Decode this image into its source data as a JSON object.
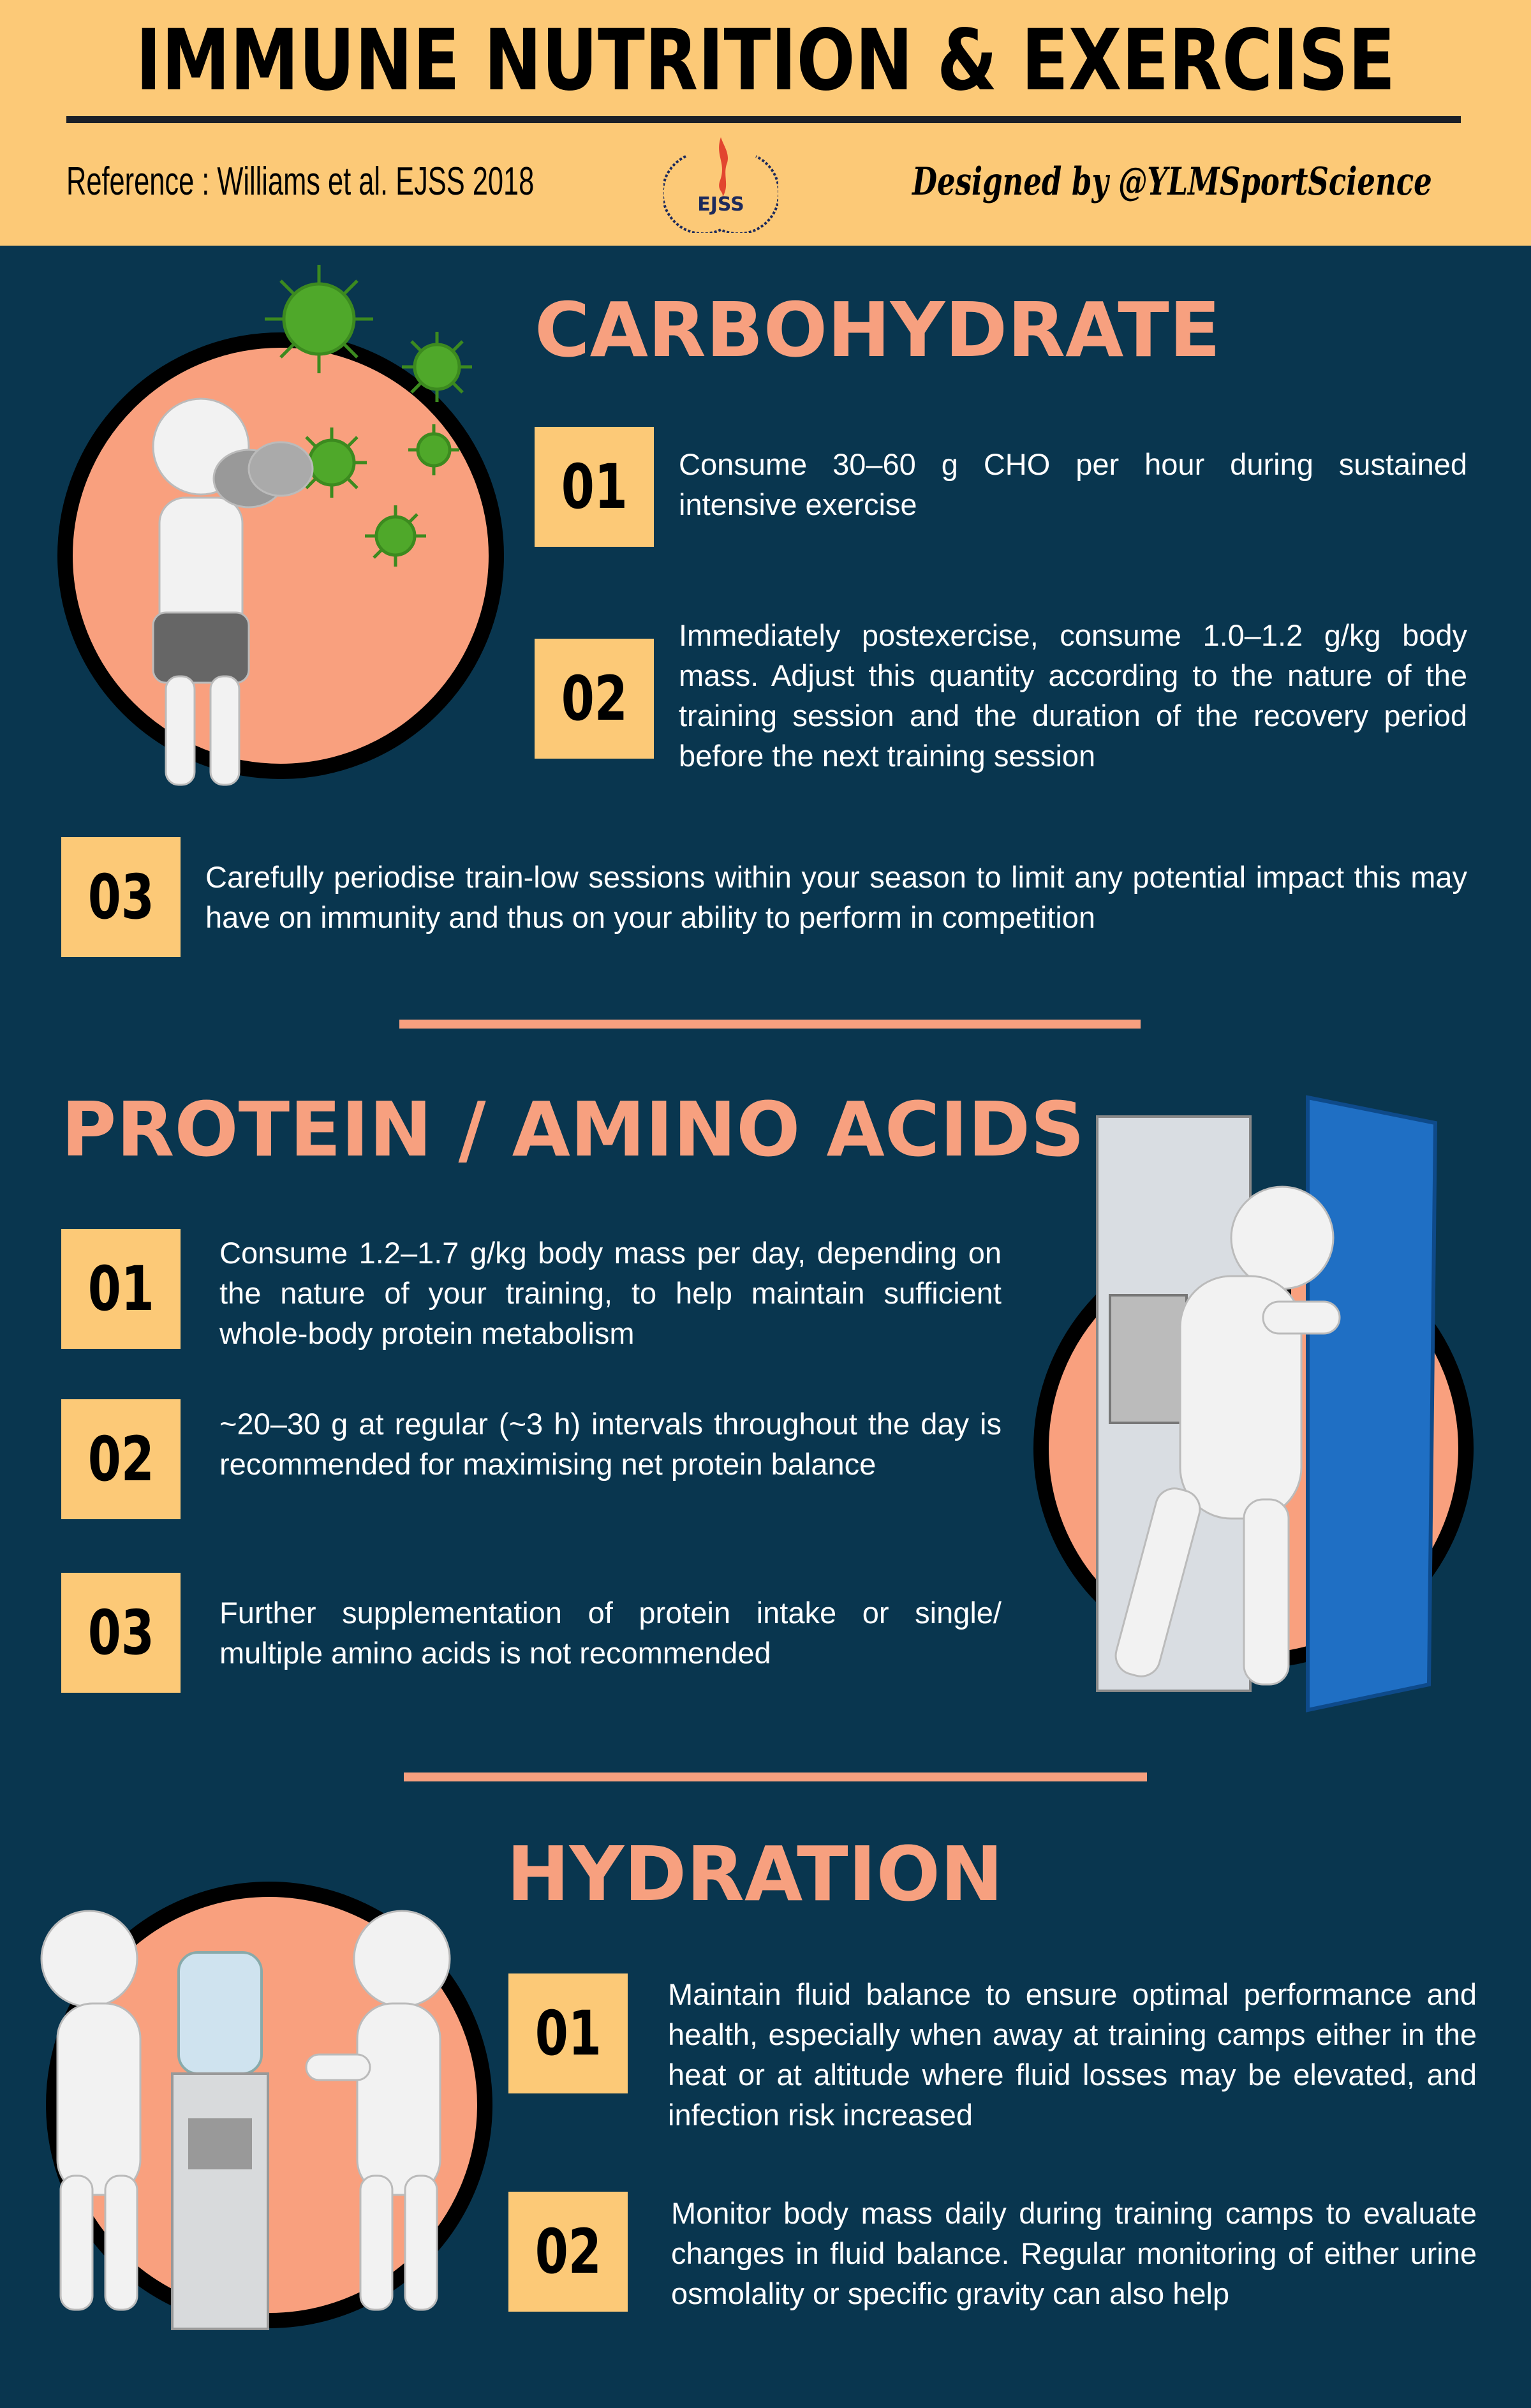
{
  "header": {
    "title": "IMMUNE NUTRITION & EXERCISE",
    "reference": "Reference  : Williams et al. EJSS 2018",
    "logo_text": "EJSS",
    "logo_ring_text": "EUROPEAN JOURNAL of SPORT SCIENCE",
    "designed_by": "Designed by @YLMSportScience"
  },
  "colors": {
    "header_bg": "#fcc977",
    "page_bg": "#09364f",
    "accent": "#f7a07f",
    "number_box": "#fcc977"
  },
  "sections": [
    {
      "heading": "CARBOHYDRATE",
      "items": [
        {
          "number": "01",
          "text": "Consume 30–60 g CHO per hour during sustained intensive exercise"
        },
        {
          "number": "02",
          "text": "Immediately postexercise, consume 1.0–1.2 g/kg body mass. Adjust this quantity according to the nature of the training session and the duration of the recovery period before the next training session"
        },
        {
          "number": "03",
          "text": "Carefully periodise train-low sessions within your season to limit any potential impact this may have on immunity and thus on your ability to perform in competition"
        }
      ]
    },
    {
      "heading": "PROTEIN / AMINO ACIDS",
      "items": [
        {
          "number": "01",
          "text": "Consume 1.2–1.7 g/kg body mass per day, depending on the nature of your training, to help maintain sufficient whole-body protein metabolism"
        },
        {
          "number": "02",
          "text": "~20–30 g at regular (~3 h) intervals throughout the day is recommended for maximising net protein balance"
        },
        {
          "number": "03",
          "text": "Further supplementation of protein intake or single/ multiple amino acids is not recommended"
        }
      ]
    },
    {
      "heading": "HYDRATION",
      "items": [
        {
          "number": "01",
          "text": "Maintain fluid balance  to ensure optimal performance and health, especially when away at training camps either in the heat or at altitude where fluid losses may be elevated, and infection risk increased"
        },
        {
          "number": "02",
          "text": "Monitor body mass daily during training camps to evaluate changes in fluid balance. Regular monitoring of either urine osmolality or specific gravity can also help"
        }
      ]
    }
  ]
}
